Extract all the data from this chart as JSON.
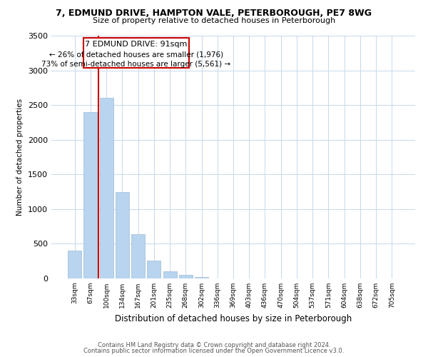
{
  "title_line1": "7, EDMUND DRIVE, HAMPTON VALE, PETERBOROUGH, PE7 8WG",
  "title_line2": "Size of property relative to detached houses in Peterborough",
  "xlabel": "Distribution of detached houses by size in Peterborough",
  "ylabel": "Number of detached properties",
  "categories": [
    "33sqm",
    "67sqm",
    "100sqm",
    "134sqm",
    "167sqm",
    "201sqm",
    "235sqm",
    "268sqm",
    "302sqm",
    "336sqm",
    "369sqm",
    "403sqm",
    "436sqm",
    "470sqm",
    "504sqm",
    "537sqm",
    "571sqm",
    "604sqm",
    "638sqm",
    "672sqm",
    "705sqm"
  ],
  "values": [
    400,
    2400,
    2600,
    1250,
    640,
    260,
    100,
    50,
    25,
    0,
    0,
    0,
    0,
    0,
    0,
    0,
    0,
    0,
    0,
    0,
    0
  ],
  "bar_color": "#b8d4ee",
  "bar_edge_color": "#9bbcd8",
  "property_line_label": "7 EDMUND DRIVE: 91sqm",
  "annotation_smaller": "← 26% of detached houses are smaller (1,976)",
  "annotation_larger": "73% of semi-detached houses are larger (5,561) →",
  "ylim": [
    0,
    3500
  ],
  "yticks": [
    0,
    500,
    1000,
    1500,
    2000,
    2500,
    3000,
    3500
  ],
  "footnote1": "Contains HM Land Registry data © Crown copyright and database right 2024.",
  "footnote2": "Contains public sector information licensed under the Open Government Licence v3.0.",
  "background_color": "#ffffff",
  "grid_color": "#c8d8ec",
  "annotation_box_color": "#ffffff",
  "annotation_box_edge": "#cc0000",
  "red_line_color": "#cc0000"
}
